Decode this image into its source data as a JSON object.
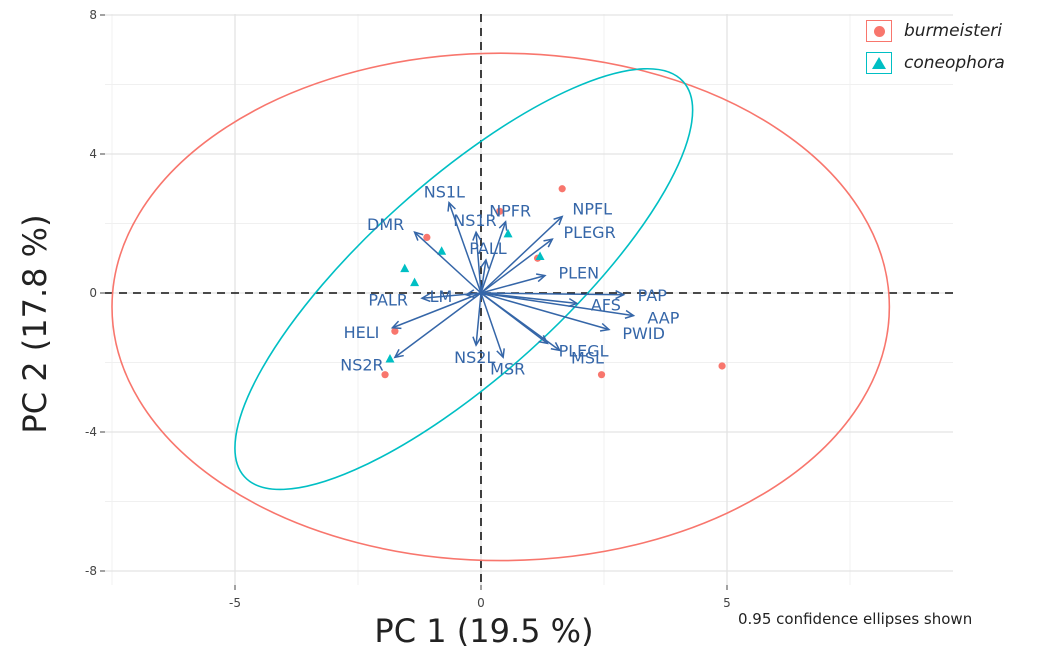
{
  "chart_data": {
    "type": "scatter",
    "xlabel": "PC 1 (19.5 %)",
    "ylabel": "PC 2 (17.8 %)",
    "xlim": [
      -9.5,
      9.5
    ],
    "ylim": [
      -8.5,
      8.2
    ],
    "x_ticks": [
      -5,
      0,
      5
    ],
    "x_tick_labels": [
      "-5",
      "0",
      "5"
    ],
    "y_ticks": [
      -8,
      -4,
      0,
      4,
      8
    ],
    "y_tick_labels": [
      "-8",
      "-4",
      "0",
      "4",
      "8"
    ],
    "grid": true,
    "legend_position": "top-right",
    "note": "0.95 confidence ellipses shown",
    "series": [
      {
        "name": "burmeisteri",
        "color": "#F8766D",
        "marker": "circle",
        "points": [
          [
            1.65,
            3.0
          ],
          [
            0.38,
            2.35
          ],
          [
            -1.1,
            1.6
          ],
          [
            1.15,
            1.0
          ],
          [
            -1.75,
            -1.1
          ],
          [
            -1.95,
            -2.35
          ],
          [
            2.45,
            -2.35
          ],
          [
            4.9,
            -2.1
          ]
        ],
        "ellipse": {
          "cx": 0.4,
          "cy": -0.4,
          "rx": 7.9,
          "ry": 7.3,
          "angle": 0
        }
      },
      {
        "name": "coneophora",
        "color": "#00BFC4",
        "marker": "triangle",
        "points": [
          [
            -0.8,
            1.2
          ],
          [
            -1.55,
            0.7
          ],
          [
            -1.35,
            0.3
          ],
          [
            0.55,
            1.7
          ],
          [
            1.2,
            1.05
          ],
          [
            -1.85,
            -1.9
          ]
        ],
        "ellipse": {
          "cx": -0.35,
          "cy": 0.4,
          "rx": 6.0,
          "ry": 2.8,
          "angle": 42
        }
      }
    ],
    "loadings": {
      "color": "#3566a8",
      "vectors": [
        {
          "label": "NS1L",
          "x": -0.65,
          "y": 2.6
        },
        {
          "label": "NPFR",
          "x": 0.5,
          "y": 2.05
        },
        {
          "label": "NPFL",
          "x": 1.65,
          "y": 2.2
        },
        {
          "label": "NS1R",
          "x": -0.1,
          "y": 1.75
        },
        {
          "label": "DMR",
          "x": -1.35,
          "y": 1.75
        },
        {
          "label": "PLEGR",
          "x": 1.45,
          "y": 1.55
        },
        {
          "label": "PALL",
          "x": 0.1,
          "y": 0.95
        },
        {
          "label": "PLEN",
          "x": 1.3,
          "y": 0.5
        },
        {
          "label": "PAP",
          "x": 2.9,
          "y": -0.05
        },
        {
          "label": "PALR",
          "x": -1.2,
          "y": -0.15
        },
        {
          "label": "LM",
          "x": -0.3,
          "y": -0.05
        },
        {
          "label": "AFS",
          "x": 1.95,
          "y": -0.3
        },
        {
          "label": "AAP",
          "x": 3.1,
          "y": -0.65
        },
        {
          "label": "PWID",
          "x": 2.6,
          "y": -1.05
        },
        {
          "label": "HELI",
          "x": -1.8,
          "y": -1.0
        },
        {
          "label": "PLEGL",
          "x": 1.35,
          "y": -1.45
        },
        {
          "label": "NS2L",
          "x": -0.1,
          "y": -1.5
        },
        {
          "label": "NS2R",
          "x": -1.75,
          "y": -1.85
        },
        {
          "label": "MSR",
          "x": 0.45,
          "y": -1.85
        },
        {
          "label": "MSL",
          "x": 1.6,
          "y": -1.65
        }
      ],
      "label_offsets_note": "labels placed near arrow tips"
    }
  }
}
